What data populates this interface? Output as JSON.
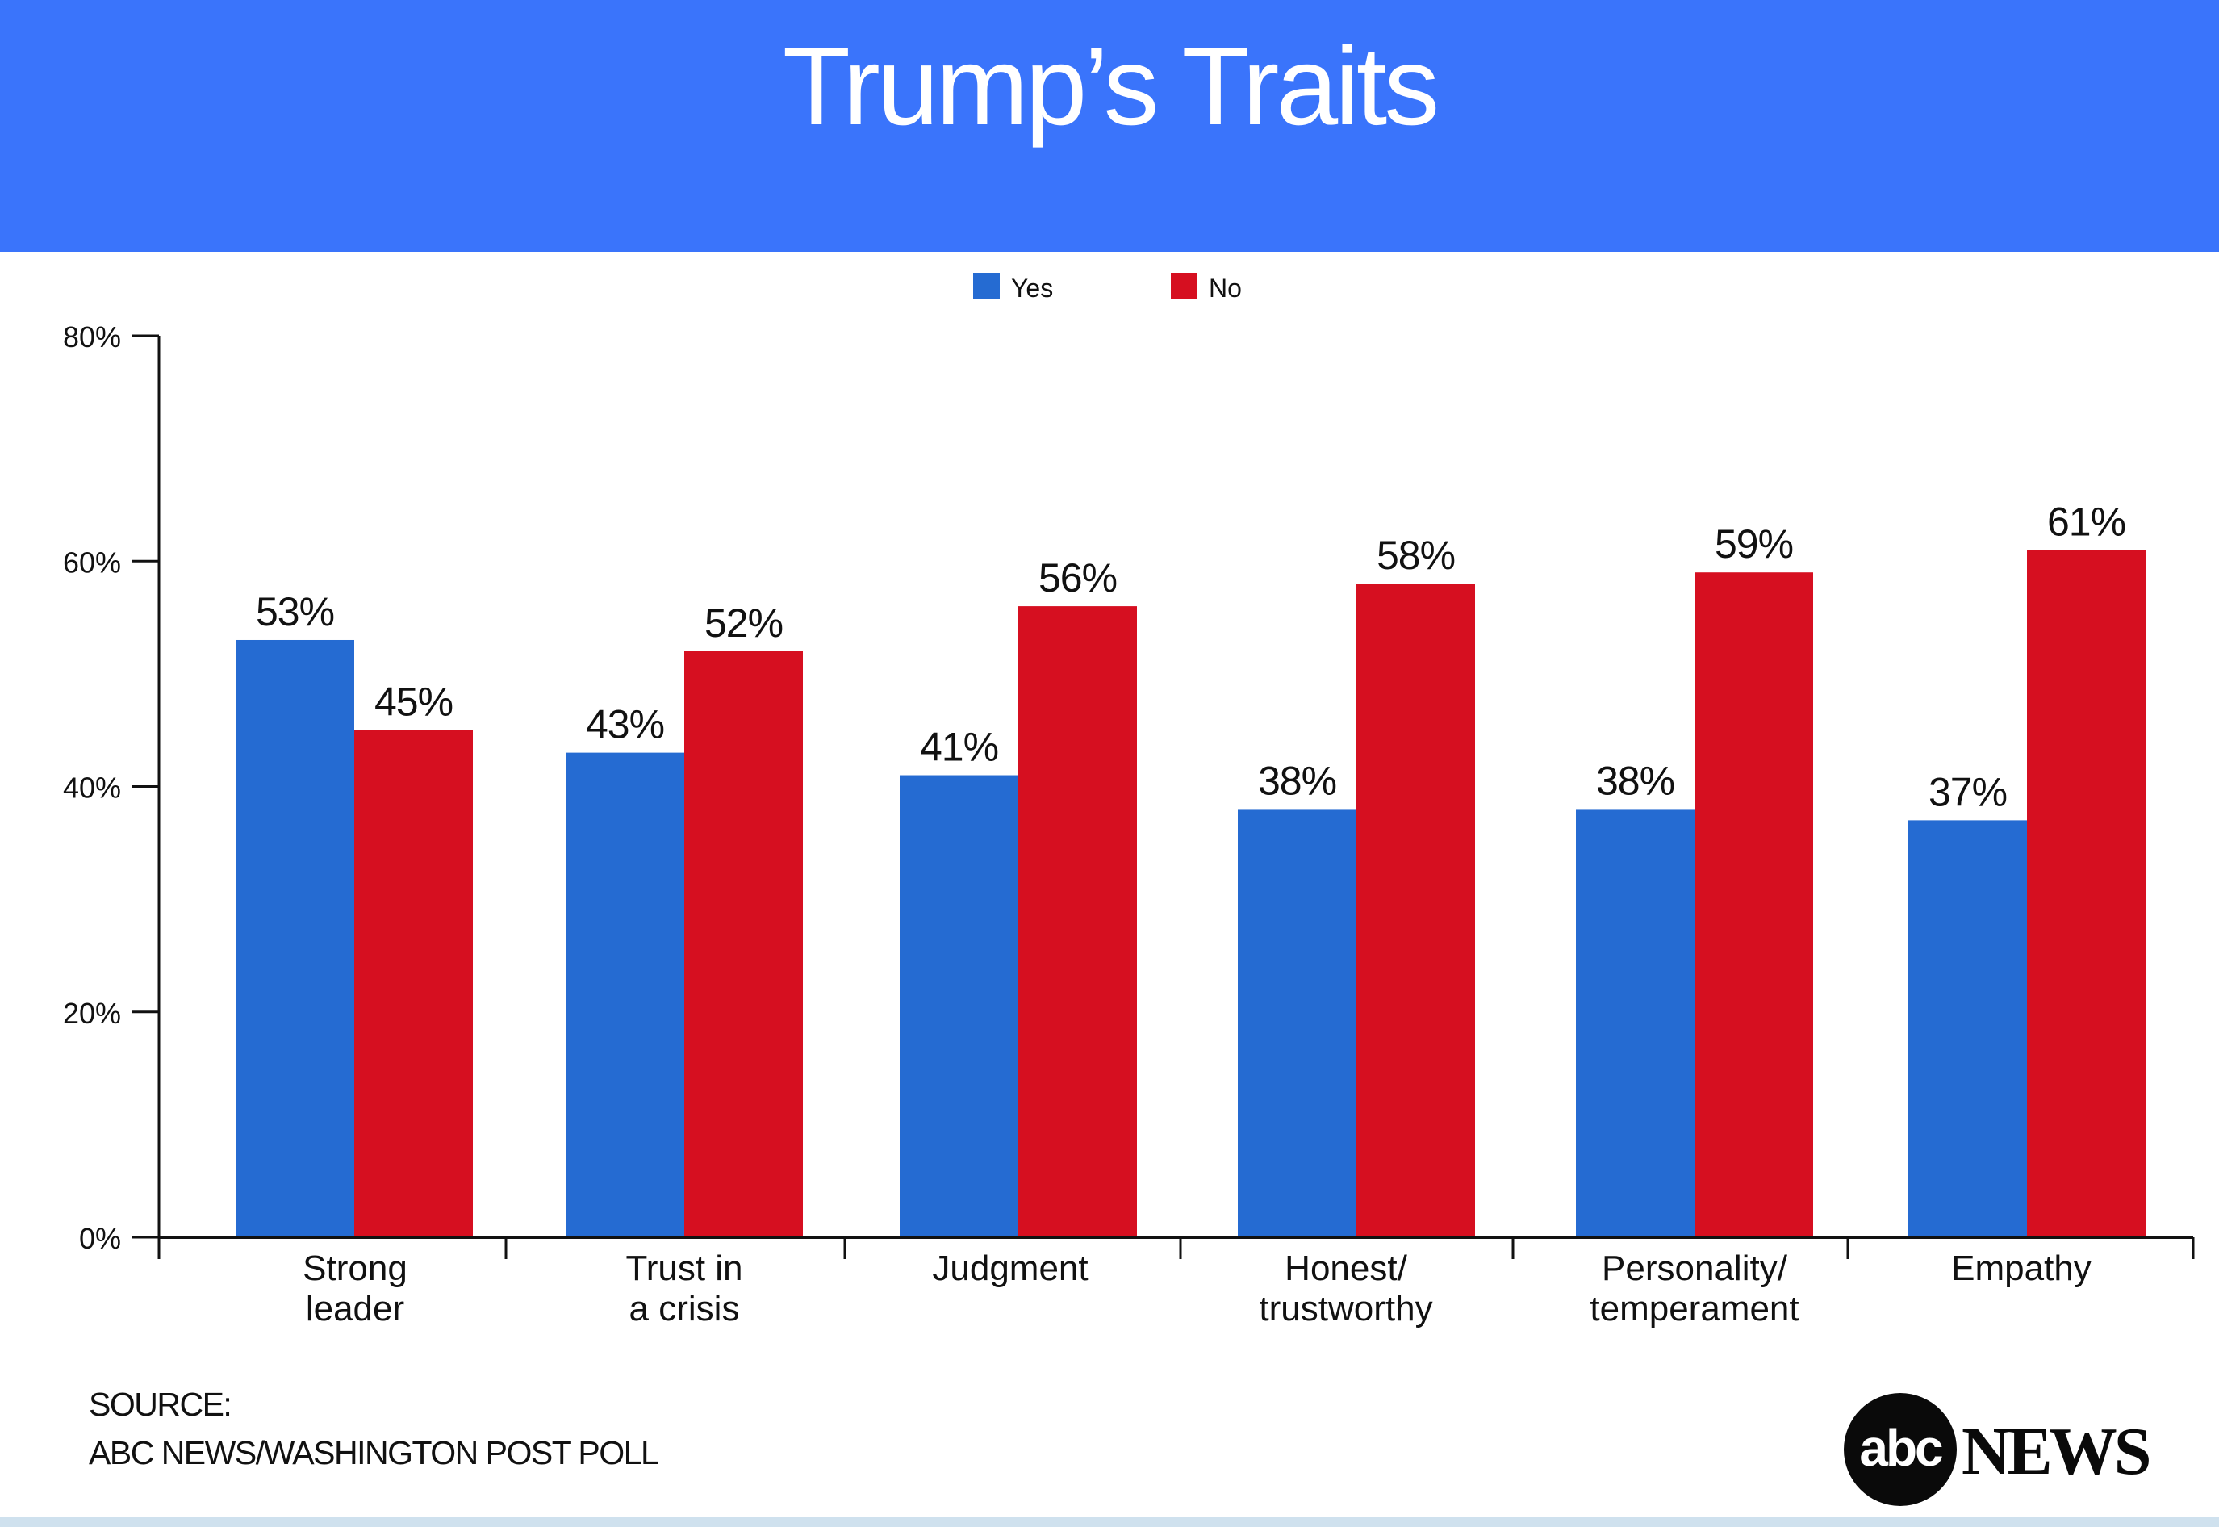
{
  "header": {
    "title": "Trump’s Traits"
  },
  "source": {
    "line1": "SOURCE:",
    "line2": "ABC NEWS/WASHINGTON POST POLL"
  },
  "logo": {
    "abc": "abc",
    "news": "NEWS"
  },
  "colors": {
    "header": "#3a74fb",
    "yes": "#256bd2",
    "no": "#d60f20"
  },
  "chart_data": {
    "type": "bar",
    "title": "",
    "xlabel": "",
    "ylabel": "",
    "ylim": [
      0,
      80
    ],
    "yticks": [
      "0%",
      "20%",
      "40%",
      "60%",
      "80%"
    ],
    "legend_position": "top-center",
    "categories": [
      [
        "Strong",
        "leader"
      ],
      [
        "Trust in",
        "a crisis"
      ],
      [
        "Judgment"
      ],
      [
        "Honest/",
        "trustworthy"
      ],
      [
        "Personality/",
        "temperament"
      ],
      [
        "Empathy"
      ]
    ],
    "series": [
      {
        "name": "Yes",
        "color": "#256bd2",
        "values": [
          53,
          43,
          41,
          38,
          38,
          37
        ],
        "labels": [
          "53%",
          "43%",
          "41%",
          "38%",
          "38%",
          "37%"
        ]
      },
      {
        "name": "No",
        "color": "#d60f20",
        "values": [
          45,
          52,
          56,
          58,
          59,
          61
        ],
        "labels": [
          "45%",
          "52%",
          "56%",
          "58%",
          "59%",
          "61%"
        ]
      }
    ]
  }
}
